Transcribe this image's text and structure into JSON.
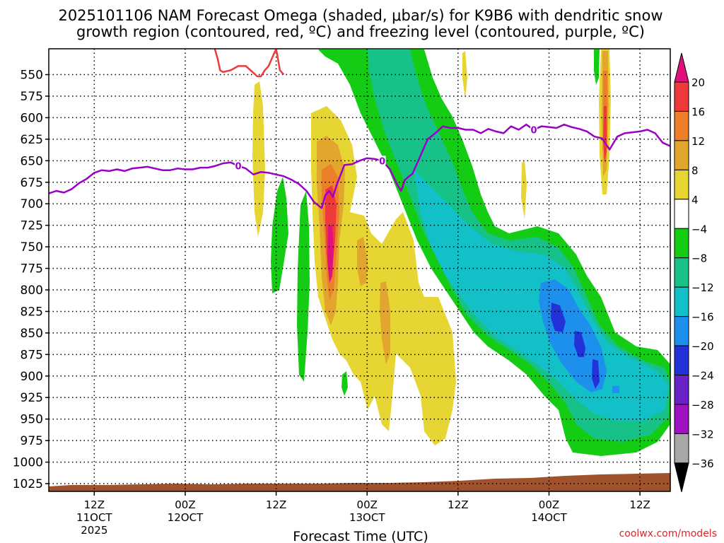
{
  "chart_data": {
    "type": "heatmap",
    "title": "2025101106 NAM Forecast Omega (shaded, μbar/s) for K9B6 with dendritic snow",
    "title_line2": "growth region (contoured, red, ºC) and freezing level (contoured, purple, ºC)",
    "xlabel": "Forecast Time (UTC)",
    "ylabel": "",
    "x_unit": "hours_since_2025101106",
    "xlim": [
      0,
      82
    ],
    "ylim": [
      1034,
      520
    ],
    "y_ticks": [
      {
        "value": 550,
        "label": "550"
      },
      {
        "value": 575,
        "label": "575"
      },
      {
        "value": 600,
        "label": "600"
      },
      {
        "value": 625,
        "label": "625"
      },
      {
        "value": 650,
        "label": "650"
      },
      {
        "value": 675,
        "label": "675"
      },
      {
        "value": 700,
        "label": "700"
      },
      {
        "value": 725,
        "label": "725"
      },
      {
        "value": 750,
        "label": "750"
      },
      {
        "value": 775,
        "label": "775"
      },
      {
        "value": 800,
        "label": "800"
      },
      {
        "value": 825,
        "label": "825"
      },
      {
        "value": 850,
        "label": "850"
      },
      {
        "value": 875,
        "label": "875"
      },
      {
        "value": 900,
        "label": "900"
      },
      {
        "value": 925,
        "label": "925"
      },
      {
        "value": 950,
        "label": "950"
      },
      {
        "value": 975,
        "label": "975"
      },
      {
        "value": 1000,
        "label": "1000"
      },
      {
        "value": 1025,
        "label": "1025"
      }
    ],
    "x_ticks": [
      {
        "value": 6,
        "line1": "12Z",
        "line2": "11OCT",
        "line3": "2025"
      },
      {
        "value": 18,
        "line1": "00Z",
        "line2": "12OCT",
        "line3": ""
      },
      {
        "value": 30,
        "line1": "12Z",
        "line2": "",
        "line3": ""
      },
      {
        "value": 42,
        "line1": "00Z",
        "line2": "13OCT",
        "line3": ""
      },
      {
        "value": 54,
        "line1": "12Z",
        "line2": "",
        "line3": ""
      },
      {
        "value": 66,
        "line1": "00Z",
        "line2": "14OCT",
        "line3": ""
      },
      {
        "value": 78,
        "line1": "12Z",
        "line2": "",
        "line3": ""
      }
    ],
    "colorbar": {
      "labels": [
        "20",
        "16",
        "12",
        "8",
        "4",
        "−4",
        "−8",
        "−12",
        "−16",
        "−20",
        "−24",
        "−28",
        "−32",
        "−36"
      ],
      "bins": [
        {
          "lo": 20,
          "hi": 24,
          "color": "#e0117f"
        },
        {
          "lo": 16,
          "hi": 20,
          "color": "#ee3a3a"
        },
        {
          "lo": 12,
          "hi": 16,
          "color": "#ee7f2a"
        },
        {
          "lo": 8,
          "hi": 12,
          "color": "#e2a62f"
        },
        {
          "lo": 4,
          "hi": 8,
          "color": "#e6d532"
        },
        {
          "lo": -4,
          "hi": 4,
          "color": "#ffffff"
        },
        {
          "lo": -8,
          "hi": -4,
          "color": "#15cc15"
        },
        {
          "lo": -12,
          "hi": -8,
          "color": "#17c289"
        },
        {
          "lo": -16,
          "hi": -12,
          "color": "#12c0c8"
        },
        {
          "lo": -20,
          "hi": -16,
          "color": "#1d8fec"
        },
        {
          "lo": -24,
          "hi": -20,
          "color": "#2232d8"
        },
        {
          "lo": -28,
          "hi": -24,
          "color": "#6a22c8"
        },
        {
          "lo": -32,
          "hi": -28,
          "color": "#a011c2"
        },
        {
          "lo": -36,
          "hi": -32,
          "color": "#a8a8a8"
        },
        {
          "lo": -40,
          "hi": -36,
          "color": "#000000"
        }
      ]
    },
    "series": [
      {
        "name": "freezing level (0 ºC)",
        "color": "#9b00c8",
        "contour_label": "0",
        "x": [
          0,
          1,
          2,
          3,
          4,
          5,
          6,
          7,
          8,
          9,
          10,
          11,
          12,
          13,
          14,
          15,
          16,
          17,
          18,
          19,
          20,
          21,
          22,
          23,
          24,
          25,
          26,
          27,
          28,
          29,
          30,
          31,
          32,
          33,
          34,
          35,
          36,
          36.5,
          37,
          37.5,
          38,
          39,
          40,
          41,
          42,
          43,
          44,
          45,
          46,
          46.5,
          47,
          48,
          49,
          50,
          51,
          52,
          53,
          54,
          55,
          56,
          57,
          58,
          59,
          60,
          61,
          62,
          63,
          64,
          65,
          66,
          67,
          68,
          69,
          70,
          71,
          72,
          73,
          74,
          75,
          76,
          77,
          78,
          79,
          80,
          81,
          82
        ],
        "y": [
          688,
          685,
          687,
          683,
          676,
          671,
          664,
          661,
          662,
          660,
          662,
          659,
          658,
          657,
          659,
          661,
          661,
          659,
          660,
          660,
          658,
          658,
          656,
          653,
          652,
          656,
          659,
          666,
          663,
          664,
          666,
          668,
          672,
          677,
          685,
          698,
          705,
          690,
          685,
          692,
          678,
          655,
          654,
          650,
          647,
          648,
          650,
          660,
          678,
          685,
          672,
          665,
          645,
          625,
          618,
          610,
          612,
          612,
          614,
          614,
          618,
          613,
          616,
          618,
          610,
          614,
          608,
          614,
          610,
          611,
          612,
          608,
          611,
          613,
          616,
          622,
          624,
          637,
          622,
          618,
          617,
          616,
          614,
          618,
          629,
          633
        ]
      },
      {
        "name": "dendritic snow growth region (ºC)",
        "color": "#ee3a3a",
        "x": [
          21.9,
          22.3,
          22.6,
          23.0,
          24.0,
          25.0,
          26.0,
          27.0,
          27.5,
          28.0,
          28.5,
          29.0,
          29.5,
          30.0,
          30.5,
          31.0
        ],
        "y": [
          520,
          532,
          545,
          547,
          545,
          540,
          540,
          548,
          552,
          552,
          545,
          540,
          530,
          520,
          545,
          550
        ]
      }
    ]
  },
  "credit": "coolwx.com/models"
}
